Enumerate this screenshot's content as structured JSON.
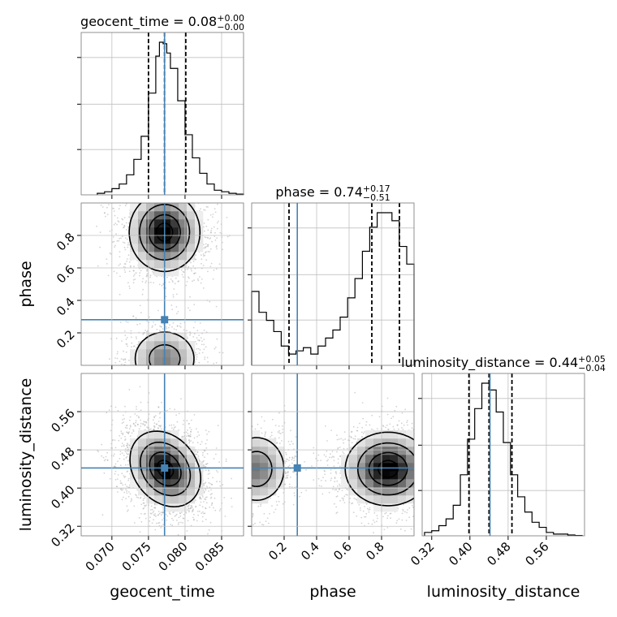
{
  "chart_data": {
    "type": "corner",
    "parameters": [
      "geocent_time",
      "phase",
      "luminosity_distance"
    ],
    "truth": {
      "geocent_time": 0.0772,
      "phase": 0.281,
      "luminosity_distance": 0.442
    },
    "accent_colors": {
      "truth": "#4682b4",
      "hist": "#000000",
      "grid": "#c0c0c0",
      "scatter": "#9e9e9e"
    },
    "titles": {
      "geocent_time": {
        "main": "geocent_time = 0.08",
        "sup": "+0.00",
        "sub": "−0.00"
      },
      "phase": {
        "main": "phase = 0.74",
        "sup": "+0.17",
        "sub": "−0.51"
      },
      "luminosity_distance": {
        "main": "luminosity_distance = 0.44",
        "sup": "+0.05",
        "sub": "−0.04"
      }
    },
    "axes": {
      "geocent_time": {
        "label": "geocent_time",
        "range": [
          0.0658,
          0.088
        ],
        "ticks": [
          0.07,
          0.075,
          0.08,
          0.085
        ],
        "tick_labels": [
          "0.070",
          "0.075",
          "0.080",
          "0.085"
        ]
      },
      "phase": {
        "label": "phase",
        "range": [
          0.0,
          1.0
        ],
        "ticks": [
          0.2,
          0.4,
          0.6,
          0.8
        ],
        "tick_labels": [
          "0.2",
          "0.4",
          "0.6",
          "0.8"
        ]
      },
      "luminosity_distance": {
        "label": "luminosity_distance",
        "range": [
          0.3,
          0.64
        ],
        "ticks": [
          0.32,
          0.4,
          0.48,
          0.56
        ],
        "tick_labels": [
          "0.32",
          "0.40",
          "0.48",
          "0.56"
        ]
      }
    },
    "histograms": {
      "geocent_time": {
        "bin_edges": [
          0.068,
          0.069,
          0.07,
          0.071,
          0.072,
          0.073,
          0.074,
          0.075,
          0.076,
          0.0765,
          0.077,
          0.0775,
          0.078,
          0.079,
          0.08,
          0.081,
          0.082,
          0.083,
          0.084,
          0.085,
          0.086,
          0.087,
          0.088
        ],
        "counts": [
          0.01,
          0.02,
          0.04,
          0.07,
          0.13,
          0.23,
          0.38,
          0.66,
          0.9,
          0.99,
          0.98,
          0.92,
          0.82,
          0.61,
          0.39,
          0.24,
          0.14,
          0.07,
          0.03,
          0.02,
          0.01,
          0.005
        ],
        "quantiles": [
          0.075,
          0.0772,
          0.0801
        ]
      },
      "phase": {
        "bin_edges": [
          0.0,
          0.045,
          0.091,
          0.136,
          0.182,
          0.227,
          0.273,
          0.318,
          0.364,
          0.409,
          0.455,
          0.5,
          0.545,
          0.591,
          0.636,
          0.682,
          0.727,
          0.773,
          0.818,
          0.864,
          0.909,
          0.955,
          1.0
        ],
        "counts": [
          0.46,
          0.33,
          0.28,
          0.21,
          0.12,
          0.07,
          0.09,
          0.11,
          0.07,
          0.12,
          0.17,
          0.22,
          0.3,
          0.42,
          0.54,
          0.71,
          0.86,
          0.95,
          0.95,
          0.9,
          0.74,
          0.63
        ],
        "quantiles": [
          0.23,
          0.74,
          0.91
        ]
      },
      "luminosity_distance": {
        "bin_edges": [
          0.305,
          0.32,
          0.335,
          0.35,
          0.365,
          0.38,
          0.395,
          0.41,
          0.425,
          0.44,
          0.455,
          0.47,
          0.485,
          0.5,
          0.515,
          0.53,
          0.545,
          0.56,
          0.575,
          0.59,
          0.605,
          0.62,
          0.635
        ],
        "counts": [
          0.02,
          0.03,
          0.06,
          0.1,
          0.18,
          0.36,
          0.57,
          0.75,
          0.9,
          0.86,
          0.73,
          0.55,
          0.36,
          0.23,
          0.14,
          0.08,
          0.05,
          0.02,
          0.01,
          0.01,
          0.005,
          0.002
        ],
        "quantiles": [
          0.398,
          0.44,
          0.488
        ]
      }
    },
    "densities": [
      {
        "x": "geocent_time",
        "y": "phase",
        "components": [
          {
            "mx": 0.0772,
            "my": 0.82,
            "sx": 0.0022,
            "sy": 0.11,
            "rho": 0.0,
            "w": 0.72
          },
          {
            "mx": 0.0772,
            "my": 0.04,
            "sx": 0.0022,
            "sy": 0.09,
            "rho": 0.0,
            "w": 0.28
          }
        ]
      },
      {
        "x": "geocent_time",
        "y": "luminosity_distance",
        "components": [
          {
            "mx": 0.0773,
            "my": 0.44,
            "sx": 0.0022,
            "sy": 0.036,
            "rho": -0.25,
            "w": 1.0
          }
        ]
      },
      {
        "x": "phase",
        "y": "luminosity_distance",
        "components": [
          {
            "mx": 0.84,
            "my": 0.44,
            "sx": 0.12,
            "sy": 0.035,
            "rho": 0.0,
            "w": 0.72
          },
          {
            "mx": 0.03,
            "my": 0.44,
            "sx": 0.09,
            "sy": 0.035,
            "rho": 0.0,
            "w": 0.28
          }
        ]
      }
    ]
  }
}
